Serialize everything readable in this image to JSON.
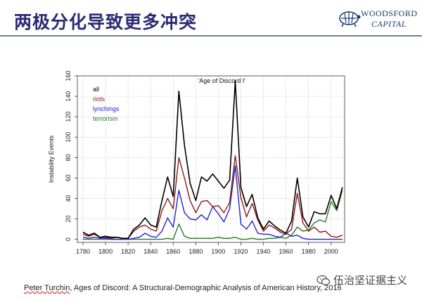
{
  "slide": {
    "title": "两极分化导致更多冲突"
  },
  "logo": {
    "line1": "WOODSFORD",
    "line2": "CAPITAL",
    "color": "#1d3a6b"
  },
  "caption": {
    "author": "Peter Turchin",
    "rest": ", Ages of Discord: A Structural-Demographic Analysis of American History, 2016"
  },
  "watermark": {
    "text": "伍治坚证据主义"
  },
  "chart_data": {
    "type": "line",
    "title": "",
    "annotation": "'Age of Discord I'",
    "xlabel": "",
    "ylabel": "Instability Events",
    "xlim": [
      1775,
      2012
    ],
    "ylim": [
      -3,
      160
    ],
    "xticks": [
      1780,
      1800,
      1820,
      1840,
      1860,
      1880,
      1900,
      1920,
      1940,
      1960,
      1980,
      2000
    ],
    "yticks": [
      0,
      20,
      40,
      60,
      80,
      100,
      120,
      140,
      160
    ],
    "x": [
      1780,
      1785,
      1790,
      1795,
      1800,
      1805,
      1810,
      1815,
      1820,
      1825,
      1830,
      1835,
      1840,
      1845,
      1850,
      1855,
      1860,
      1865,
      1870,
      1875,
      1880,
      1885,
      1890,
      1895,
      1900,
      1905,
      1910,
      1915,
      1920,
      1925,
      1930,
      1935,
      1940,
      1945,
      1950,
      1955,
      1960,
      1965,
      1970,
      1975,
      1980,
      1985,
      1990,
      1995,
      2000,
      2005,
      2010
    ],
    "series": [
      {
        "name": "all",
        "color": "#000000",
        "values": [
          7,
          4,
          6,
          2,
          3,
          2,
          2,
          1,
          1,
          10,
          14,
          21,
          14,
          12,
          38,
          61,
          42,
          145,
          92,
          55,
          38,
          61,
          57,
          64,
          57,
          50,
          58,
          155,
          51,
          32,
          44,
          21,
          10,
          18,
          13,
          9,
          6,
          18,
          60,
          22,
          12,
          27,
          25,
          25,
          43,
          30,
          51
        ]
      },
      {
        "name": "riots",
        "color": "#8b1a1a",
        "values": [
          5,
          3,
          5,
          2,
          2,
          1,
          2,
          1,
          1,
          8,
          12,
          14,
          10,
          8,
          28,
          40,
          30,
          80,
          60,
          38,
          26,
          37,
          38,
          32,
          33,
          26,
          36,
          82,
          41,
          22,
          35,
          19,
          8,
          14,
          11,
          7,
          5,
          10,
          45,
          16,
          8,
          12,
          7,
          8,
          3,
          2,
          4
        ]
      },
      {
        "name": "lynchings",
        "color": "#2222cc",
        "values": [
          2,
          1,
          2,
          1,
          1,
          0,
          0,
          0,
          0,
          1,
          2,
          6,
          3,
          2,
          8,
          21,
          12,
          48,
          26,
          20,
          19,
          24,
          19,
          32,
          25,
          17,
          30,
          72,
          15,
          10,
          18,
          6,
          5,
          5,
          3,
          2,
          6,
          3,
          4,
          1,
          0,
          0,
          0,
          0,
          0,
          0,
          0
        ]
      },
      {
        "name": "terrorism",
        "color": "#2a7a2a",
        "values": [
          0,
          0,
          0,
          0,
          0,
          0,
          0,
          0,
          0,
          0,
          0,
          0,
          0,
          0,
          0,
          1,
          0,
          15,
          3,
          1,
          1,
          1,
          1,
          1,
          2,
          1,
          1,
          2,
          0,
          0,
          1,
          0,
          0,
          1,
          1,
          2,
          1,
          4,
          12,
          8,
          9,
          16,
          19,
          17,
          37,
          28,
          48
        ]
      }
    ],
    "legend": [
      "all",
      "riots",
      "lynchings",
      "terrorism"
    ],
    "legend_position": "top-left",
    "grid": true
  }
}
